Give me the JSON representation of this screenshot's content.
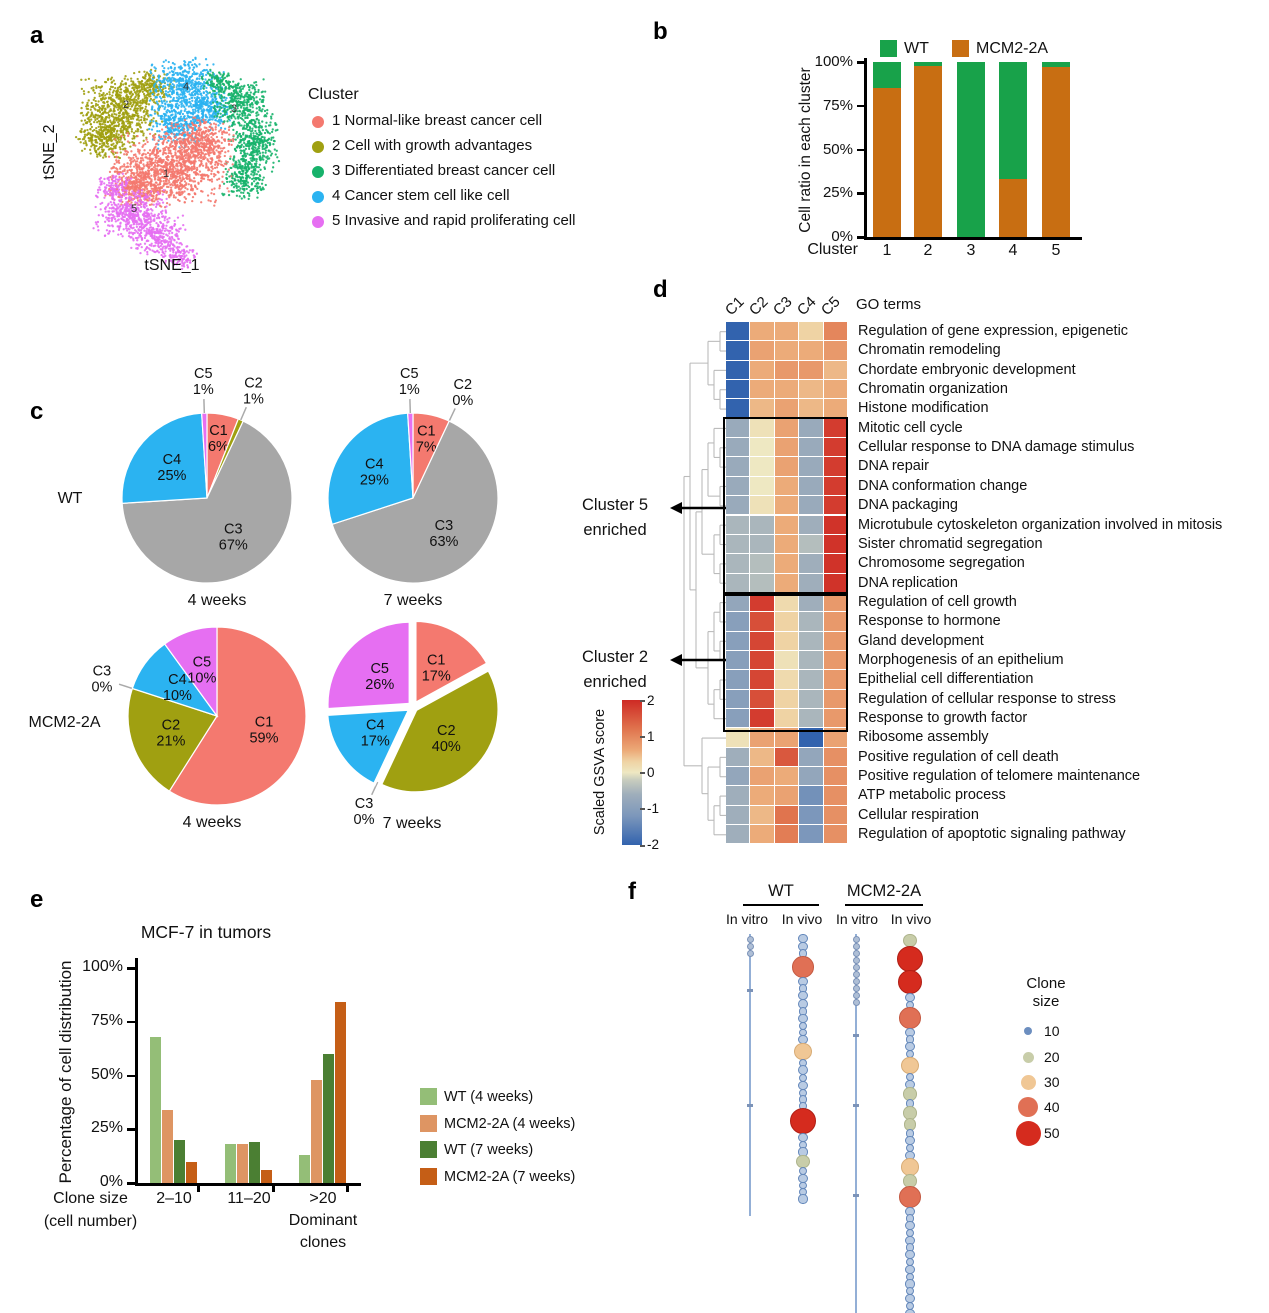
{
  "panels": {
    "a": "a",
    "b": "b",
    "c": "c",
    "d": "d",
    "e": "e",
    "f": "f"
  },
  "chart_data": [
    {
      "id": "a",
      "type": "scatter",
      "title": "tSNE clustering",
      "xlabel": "tSNE_1",
      "ylabel": "tSNE_2",
      "legend_title": "Cluster",
      "clusters": [
        {
          "num": "1",
          "label": "1 Normal-like breast cancer cell",
          "color": "#F4796F",
          "num_pos": [
            108,
            145
          ],
          "blobs": [
            [
              110,
              140,
              65,
              38
            ],
            [
              140,
              112,
              38,
              26
            ],
            [
              80,
              158,
              30,
              20
            ]
          ]
        },
        {
          "num": "2",
          "label": "2 Cell with growth advantages",
          "color": "#A0A011",
          "num_pos": [
            68,
            76
          ],
          "blobs": [
            [
              63,
              78,
              44,
              34
            ],
            [
              48,
              106,
              32,
              24
            ],
            [
              92,
              56,
              26,
              17
            ]
          ]
        },
        {
          "num": "3",
          "label": "3 Differentiated breast cancer cell",
          "color": "#17B26B",
          "num_pos": [
            176,
            80
          ],
          "blobs": [
            [
              182,
              72,
              30,
              24
            ],
            [
              196,
              110,
              26,
              34
            ],
            [
              186,
              148,
              24,
              24
            ],
            [
              162,
              52,
              20,
              14
            ]
          ]
        },
        {
          "num": "4",
          "label": "4 Cancer stem cell like cell",
          "color": "#2BB3F1",
          "num_pos": [
            128,
            58
          ],
          "blobs": [
            [
              128,
              56,
              40,
              30
            ],
            [
              120,
              94,
              30,
              26
            ],
            [
              152,
              80,
              24,
              22
            ]
          ]
        },
        {
          "num": "5",
          "label": "5 Invasive and rapid proliferating cell",
          "color": "#E66FF2",
          "num_pos": [
            76,
            180
          ],
          "blobs": [
            [
              74,
              182,
              40,
              27
            ],
            [
              100,
              206,
              30,
              21
            ],
            [
              122,
              226,
              18,
              14
            ],
            [
              56,
              157,
              18,
              14
            ]
          ]
        }
      ]
    },
    {
      "id": "b",
      "type": "bar",
      "stacked": true,
      "xlabel": "Cluster",
      "ylabel": "Cell ratio in each cluster",
      "categories": [
        "1",
        "2",
        "3",
        "4",
        "5"
      ],
      "yticks": [
        "0%",
        "25%",
        "50%",
        "75%",
        "100%"
      ],
      "ylim": [
        0,
        100
      ],
      "series": [
        {
          "name": "MCM2-2A",
          "color": "#C86E12",
          "values": [
            85,
            98,
            0,
            33,
            97
          ]
        },
        {
          "name": "WT",
          "color": "#18A24A",
          "values": [
            15,
            2,
            100,
            67,
            3
          ]
        }
      ]
    },
    {
      "id": "c",
      "type": "pie",
      "colors": {
        "C1": "#F4796F",
        "C2": "#A0A011",
        "C3": "#A7A7A7",
        "C4": "#2BB3F1",
        "C5": "#E66FF2"
      },
      "groups": [
        {
          "row_label": "WT",
          "caption": "4 weeks",
          "explode": false,
          "slices": [
            {
              "label": "C1",
              "pct": 6
            },
            {
              "label": "C2",
              "pct": 1
            },
            {
              "label": "C3",
              "pct": 67
            },
            {
              "label": "C4",
              "pct": 25
            },
            {
              "label": "C5",
              "pct": 1
            }
          ]
        },
        {
          "row_label": "WT",
          "caption": "7 weeks",
          "explode": false,
          "slices": [
            {
              "label": "C1",
              "pct": 7
            },
            {
              "label": "C2",
              "pct": 0
            },
            {
              "label": "C3",
              "pct": 63
            },
            {
              "label": "C4",
              "pct": 29
            },
            {
              "label": "C5",
              "pct": 1
            }
          ]
        },
        {
          "row_label": "MCM2-2A",
          "caption": "4 weeks",
          "explode": false,
          "slices": [
            {
              "label": "C1",
              "pct": 59
            },
            {
              "label": "C2",
              "pct": 21
            },
            {
              "label": "C3",
              "pct": 0
            },
            {
              "label": "C4",
              "pct": 10
            },
            {
              "label": "C5",
              "pct": 10
            }
          ]
        },
        {
          "row_label": "MCM2-2A",
          "caption": "7 weeks",
          "explode": true,
          "slices": [
            {
              "label": "C1",
              "pct": 17
            },
            {
              "label": "C2",
              "pct": 40
            },
            {
              "label": "C3",
              "pct": 0
            },
            {
              "label": "C4",
              "pct": 17
            },
            {
              "label": "C5",
              "pct": 26
            }
          ]
        }
      ]
    },
    {
      "id": "d",
      "type": "heatmap",
      "corner_label": "GO terms",
      "columns": [
        "C1",
        "C2",
        "C3",
        "C4",
        "C5"
      ],
      "rows": [
        "Regulation of gene expression, epigenetic",
        "Chromatin remodeling",
        "Chordate embryonic development",
        "Chromatin organization",
        "Histone modification",
        "Mitotic cell cycle",
        "Cellular response to DNA damage stimulus",
        "DNA repair",
        "DNA conformation change",
        "DNA packaging",
        "Microtubule cytoskeleton organization involved in mitosis",
        "Sister chromatid segregation",
        "Chromosome segregation",
        "DNA replication",
        "Regulation of cell growth",
        "Response to hormone",
        "Gland development",
        "Morphogenesis of an epithelium",
        "Epithelial cell differentiation",
        "Regulation of cellular response to stress",
        "Response to growth factor",
        "Ribosome assembly",
        "Positive regulation of cell death",
        "Positive regulation of telomere maintenance",
        "ATP metabolic process",
        "Cellular respiration",
        "Regulation of apoptotic signaling pathway"
      ],
      "values": [
        [
          -2,
          0.6,
          0.6,
          0.3,
          1.0
        ],
        [
          -2,
          0.7,
          0.6,
          0.6,
          0.8
        ],
        [
          -2,
          0.6,
          0.8,
          0.8,
          0.5
        ],
        [
          -2,
          0.6,
          0.6,
          0.5,
          0.6
        ],
        [
          -2,
          0.5,
          0.7,
          0.5,
          0.6
        ],
        [
          -0.7,
          0.1,
          0.7,
          -0.7,
          1.8
        ],
        [
          -0.7,
          0.0,
          0.7,
          -0.7,
          1.8
        ],
        [
          -0.7,
          0.0,
          0.7,
          -0.7,
          1.8
        ],
        [
          -0.7,
          0.0,
          0.6,
          -0.7,
          1.8
        ],
        [
          -0.7,
          0.1,
          0.6,
          -0.7,
          1.8
        ],
        [
          -0.5,
          -0.5,
          0.6,
          -0.6,
          1.9
        ],
        [
          -0.5,
          -0.5,
          0.6,
          -0.4,
          1.9
        ],
        [
          -0.5,
          -0.4,
          0.6,
          -0.6,
          1.9
        ],
        [
          -0.5,
          -0.4,
          0.6,
          -0.6,
          1.9
        ],
        [
          -0.8,
          1.8,
          0.2,
          -0.6,
          0.8
        ],
        [
          -1.0,
          1.6,
          0.3,
          -0.5,
          0.8
        ],
        [
          -1.0,
          1.7,
          0.3,
          -0.5,
          0.8
        ],
        [
          -1.0,
          1.7,
          0.1,
          -0.5,
          0.8
        ],
        [
          -1.0,
          1.7,
          0.2,
          -0.5,
          0.8
        ],
        [
          -1.0,
          1.6,
          0.3,
          -0.5,
          0.8
        ],
        [
          -1.0,
          1.8,
          0.3,
          -0.5,
          0.8
        ],
        [
          0.1,
          0.7,
          0.7,
          -2,
          0.7
        ],
        [
          -0.6,
          0.5,
          1.5,
          -0.8,
          0.9
        ],
        [
          -0.8,
          0.7,
          0.6,
          -0.8,
          0.9
        ],
        [
          -0.6,
          0.6,
          0.7,
          -1.3,
          0.9
        ],
        [
          -0.6,
          0.5,
          1.2,
          -1.2,
          0.9
        ],
        [
          -0.6,
          0.6,
          1.1,
          -1.2,
          0.9
        ]
      ],
      "boxes": [
        {
          "first_row": 5,
          "last_row": 13
        },
        {
          "first_row": 14,
          "last_row": 20
        }
      ],
      "annotations": [
        {
          "text_lines": [
            "Cluster 5",
            "enriched"
          ]
        },
        {
          "text_lines": [
            "Cluster 2",
            "enriched"
          ]
        }
      ],
      "colorbar": {
        "label": "Scaled  GSVA score",
        "ticks": [
          "2",
          "1",
          "0",
          "-1",
          "-2"
        ],
        "range": [
          -2,
          2
        ]
      },
      "color_stops": [
        [
          -2,
          "#3263AE"
        ],
        [
          -1.2,
          "#7C97BB"
        ],
        [
          -0.6,
          "#9FAEBB"
        ],
        [
          -0.2,
          "#C9CDBE"
        ],
        [
          0,
          "#EEE8C2"
        ],
        [
          0.3,
          "#EFD3A4"
        ],
        [
          0.6,
          "#ECAB79"
        ],
        [
          1.2,
          "#E0744E"
        ],
        [
          2,
          "#CE2A24"
        ]
      ]
    },
    {
      "id": "e",
      "type": "bar",
      "grouped": true,
      "title": "MCF-7 in tumors",
      "ylabel": "Percentage of cell distribution",
      "yticks": [
        "0%",
        "25%",
        "50%",
        "75%",
        "100%"
      ],
      "ylim": [
        0,
        100
      ],
      "categories": [
        "2–10",
        "11–20",
        ">20"
      ],
      "dominant_note_lines": [
        "Dominant",
        "clones"
      ],
      "xlabel_lines": [
        "Clone size",
        "(cell number)"
      ],
      "series": [
        {
          "name": "WT (4 weeks)",
          "color": "#94BE77",
          "values": [
            68,
            18,
            13
          ]
        },
        {
          "name": "MCM2-2A (4 weeks)",
          "color": "#DE9563",
          "values": [
            34,
            18,
            48
          ]
        },
        {
          "name": "WT (7 weeks)",
          "color": "#4B7F33",
          "values": [
            20,
            19,
            60
          ]
        },
        {
          "name": "MCM2-2A (7 weeks)",
          "color": "#C55E16",
          "values": [
            10,
            6,
            84
          ]
        }
      ]
    },
    {
      "id": "f",
      "type": "bubble",
      "groups": [
        {
          "name": "WT"
        },
        {
          "name": "MCM2-2A"
        }
      ],
      "strands": [
        {
          "group": "WT",
          "condition": "In vitro",
          "kind": "line",
          "length": 282,
          "top_dots": 3,
          "marks": [
            55,
            170
          ]
        },
        {
          "group": "WT",
          "condition": "In vivo",
          "kind": "bubbles",
          "sizes": [
            10,
            10,
            8,
            40,
            10,
            8,
            10,
            12,
            8,
            10,
            8,
            6,
            10,
            30,
            8,
            12,
            8,
            10,
            8,
            8,
            6,
            50,
            10,
            8,
            10,
            20,
            8,
            10,
            6,
            8,
            10
          ]
        },
        {
          "group": "MCM2-2A",
          "condition": "In vitro",
          "kind": "line",
          "length": 379,
          "top_dots": 10,
          "marks": [
            100,
            170,
            260
          ]
        },
        {
          "group": "MCM2-2A",
          "condition": "In vivo",
          "kind": "bubbles",
          "sizes": [
            20,
            50,
            45,
            10,
            8,
            40,
            10,
            8,
            10,
            8,
            30,
            8,
            10,
            20,
            8,
            20,
            18,
            8,
            10,
            8,
            10,
            30,
            20,
            40,
            10,
            8,
            10,
            8,
            10,
            8,
            10,
            8,
            10,
            8,
            10,
            8,
            10,
            8,
            10,
            8,
            10,
            8,
            10
          ]
        }
      ],
      "legend": {
        "title_lines": [
          "Clone",
          "size"
        ],
        "items": [
          {
            "size": "10",
            "color": "#6C8EBF"
          },
          {
            "size": "20",
            "color": "#C8CDA9"
          },
          {
            "size": "30",
            "color": "#F0C795"
          },
          {
            "size": "40",
            "color": "#E07055"
          },
          {
            "size": "50",
            "color": "#D52B1E"
          }
        ]
      }
    }
  ]
}
